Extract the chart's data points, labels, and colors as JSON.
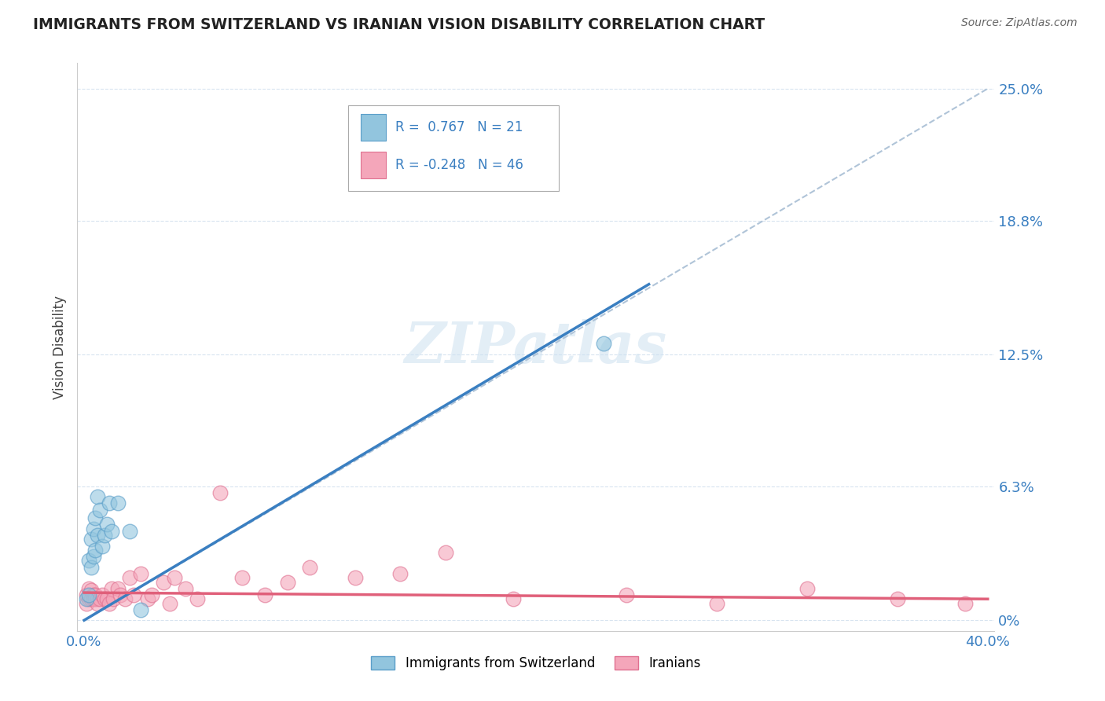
{
  "title": "IMMIGRANTS FROM SWITZERLAND VS IRANIAN VISION DISABILITY CORRELATION CHART",
  "source": "Source: ZipAtlas.com",
  "ylabel": "Vision Disability",
  "xlim": [
    -0.003,
    0.403
  ],
  "ylim": [
    -0.005,
    0.262
  ],
  "xtick_labels": [
    "0.0%",
    "40.0%"
  ],
  "xtick_vals": [
    0.0,
    0.4
  ],
  "ytick_labels": [
    "25.0%",
    "18.8%",
    "12.5%",
    "6.3%",
    "0%"
  ],
  "ytick_vals": [
    0.25,
    0.188,
    0.125,
    0.063,
    0.0
  ],
  "swiss_R": 0.767,
  "swiss_N": 21,
  "iran_R": -0.248,
  "iran_N": 46,
  "swiss_color": "#92c5de",
  "iran_color": "#f4a6ba",
  "swiss_edge_color": "#5a9ec9",
  "iran_edge_color": "#e07090",
  "swiss_line_color": "#3a7fc1",
  "iran_line_color": "#e0607a",
  "ref_line_color": "#b0c4d8",
  "grid_color": "#d8e4f0",
  "swiss_x": [
    0.001,
    0.002,
    0.002,
    0.003,
    0.003,
    0.004,
    0.004,
    0.005,
    0.005,
    0.006,
    0.006,
    0.007,
    0.008,
    0.009,
    0.01,
    0.011,
    0.012,
    0.015,
    0.02,
    0.025,
    0.23
  ],
  "swiss_y": [
    0.01,
    0.012,
    0.028,
    0.025,
    0.038,
    0.03,
    0.043,
    0.048,
    0.033,
    0.04,
    0.058,
    0.052,
    0.035,
    0.04,
    0.045,
    0.055,
    0.042,
    0.055,
    0.042,
    0.005,
    0.13
  ],
  "iran_x": [
    0.001,
    0.001,
    0.002,
    0.002,
    0.003,
    0.003,
    0.004,
    0.004,
    0.005,
    0.005,
    0.006,
    0.006,
    0.007,
    0.008,
    0.009,
    0.01,
    0.011,
    0.012,
    0.013,
    0.015,
    0.016,
    0.018,
    0.02,
    0.022,
    0.025,
    0.028,
    0.03,
    0.035,
    0.038,
    0.04,
    0.045,
    0.05,
    0.06,
    0.07,
    0.08,
    0.09,
    0.1,
    0.12,
    0.14,
    0.16,
    0.19,
    0.24,
    0.28,
    0.32,
    0.36,
    0.39
  ],
  "iran_y": [
    0.008,
    0.012,
    0.01,
    0.015,
    0.01,
    0.014,
    0.012,
    0.01,
    0.012,
    0.01,
    0.01,
    0.008,
    0.01,
    0.012,
    0.01,
    0.01,
    0.008,
    0.015,
    0.01,
    0.015,
    0.012,
    0.01,
    0.02,
    0.012,
    0.022,
    0.01,
    0.012,
    0.018,
    0.008,
    0.02,
    0.015,
    0.01,
    0.06,
    0.02,
    0.012,
    0.018,
    0.025,
    0.02,
    0.022,
    0.032,
    0.01,
    0.012,
    0.008,
    0.015,
    0.01,
    0.008
  ],
  "swiss_trend_x": [
    0.0,
    0.25
  ],
  "swiss_trend_y": [
    0.0,
    0.158
  ],
  "iran_trend_x": [
    0.0,
    0.4
  ],
  "iran_trend_y": [
    0.013,
    0.01
  ],
  "ref_line_x": [
    0.0,
    0.4
  ],
  "ref_line_y": [
    0.0,
    0.25
  ],
  "watermark_text": "ZIPatlas",
  "legend_swiss_text": "R =  0.767   N = 21",
  "legend_iran_text": "R = -0.248   N = 46"
}
